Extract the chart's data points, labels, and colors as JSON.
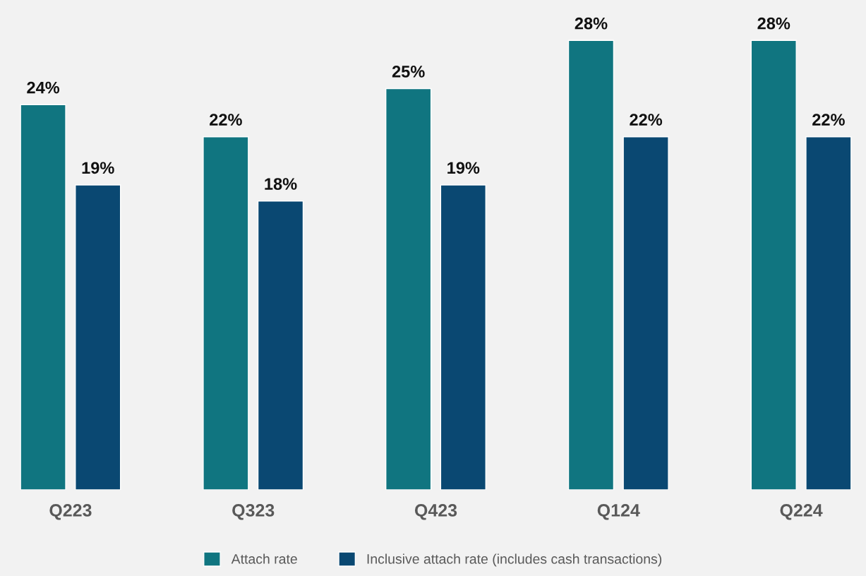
{
  "chart_data": {
    "type": "bar",
    "categories": [
      "Q223",
      "Q323",
      "Q423",
      "Q124",
      "Q224"
    ],
    "series": [
      {
        "name": "Attach rate",
        "color": "#107580",
        "values": [
          24,
          22,
          25,
          28,
          28
        ],
        "value_labels": [
          "24%",
          "22%",
          "25%",
          "28%",
          "28%"
        ]
      },
      {
        "name": "Inclusive attach rate (includes cash transactions)",
        "color": "#0a4872",
        "values": [
          19,
          18,
          19,
          22,
          22
        ],
        "value_labels": [
          "19%",
          "18%",
          "19%",
          "22%",
          "22%"
        ]
      }
    ],
    "legend": "bottom",
    "grid": false
  }
}
